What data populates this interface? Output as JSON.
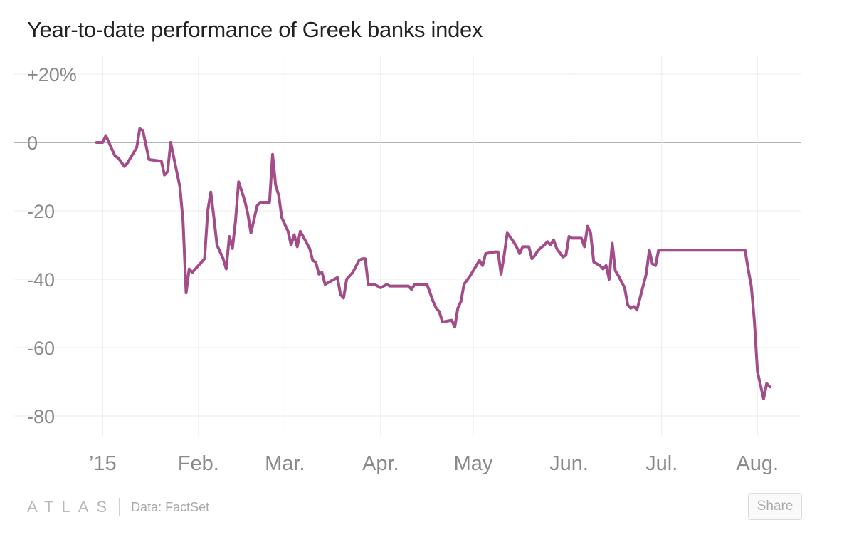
{
  "title": "Year-to-date performance of Greek banks index",
  "footer": {
    "logo": "ATLAS",
    "source": "Data: FactSet",
    "share_label": "Share"
  },
  "colors": {
    "line": "#a24d8a",
    "grid": "#ebebeb",
    "zero_line": "#9a9a9a",
    "tick_text": "#8a8a8a"
  },
  "chart_data": {
    "type": "line",
    "title": "Year-to-date performance of Greek banks index",
    "xlabel": "",
    "ylabel": "",
    "y_ticks": [
      {
        "value": 20,
        "label": "+20%"
      },
      {
        "value": 0,
        "label": "0"
      },
      {
        "value": -20,
        "label": "-20"
      },
      {
        "value": -40,
        "label": "-40"
      },
      {
        "value": -60,
        "label": "-60"
      },
      {
        "value": -80,
        "label": "-80"
      }
    ],
    "x_ticks": [
      {
        "date": "2015-01-01",
        "label": "’15"
      },
      {
        "date": "2015-02-01",
        "label": "Feb."
      },
      {
        "date": "2015-03-01",
        "label": "Mar."
      },
      {
        "date": "2015-04-01",
        "label": "Apr."
      },
      {
        "date": "2015-05-01",
        "label": "May"
      },
      {
        "date": "2015-06-01",
        "label": "Jun."
      },
      {
        "date": "2015-07-01",
        "label": "Jul."
      },
      {
        "date": "2015-08-01",
        "label": "Aug."
      }
    ],
    "xlim": [
      "2014-12-31",
      "2015-08-15"
    ],
    "ylim": [
      -85,
      22
    ],
    "grid": true,
    "series": [
      {
        "color": "#a24d8a",
        "points": [
          [
            "2014-12-30",
            0
          ],
          [
            "2015-01-01",
            0
          ],
          [
            "2015-01-02",
            2
          ],
          [
            "2015-01-05",
            -4
          ],
          [
            "2015-01-06",
            -4.5
          ],
          [
            "2015-01-08",
            -7
          ],
          [
            "2015-01-09",
            -6
          ],
          [
            "2015-01-12",
            -1.5
          ],
          [
            "2015-01-13",
            4
          ],
          [
            "2015-01-14",
            3.5
          ],
          [
            "2015-01-16",
            -5
          ],
          [
            "2015-01-20",
            -5.5
          ],
          [
            "2015-01-21",
            -9.5
          ],
          [
            "2015-01-22",
            -8.5
          ],
          [
            "2015-01-23",
            0
          ],
          [
            "2015-01-26",
            -13
          ],
          [
            "2015-01-27",
            -23
          ],
          [
            "2015-01-28",
            -44
          ],
          [
            "2015-01-29",
            -37
          ],
          [
            "2015-01-30",
            -38
          ],
          [
            "2015-02-02",
            -35
          ],
          [
            "2015-02-03",
            -34
          ],
          [
            "2015-02-04",
            -20
          ],
          [
            "2015-02-05",
            -14.5
          ],
          [
            "2015-02-06",
            -22
          ],
          [
            "2015-02-07",
            -30
          ],
          [
            "2015-02-09",
            -34
          ],
          [
            "2015-02-10",
            -37
          ],
          [
            "2015-02-11",
            -27.5
          ],
          [
            "2015-02-12",
            -31
          ],
          [
            "2015-02-13",
            -23
          ],
          [
            "2015-02-14",
            -11.5
          ],
          [
            "2015-02-16",
            -17
          ],
          [
            "2015-02-17",
            -21
          ],
          [
            "2015-02-18",
            -26.5
          ],
          [
            "2015-02-20",
            -18.5
          ],
          [
            "2015-02-21",
            -17.5
          ],
          [
            "2015-02-23",
            -17.5
          ],
          [
            "2015-02-24",
            -17.5
          ],
          [
            "2015-02-25",
            -3.5
          ],
          [
            "2015-02-26",
            -12.5
          ],
          [
            "2015-02-27",
            -15.5
          ],
          [
            "2015-02-28",
            -22
          ],
          [
            "2015-03-02",
            -26
          ],
          [
            "2015-03-03",
            -30
          ],
          [
            "2015-03-04",
            -27
          ],
          [
            "2015-03-05",
            -30.5
          ],
          [
            "2015-03-06",
            -26
          ],
          [
            "2015-03-09",
            -31
          ],
          [
            "2015-03-10",
            -34.5
          ],
          [
            "2015-03-11",
            -35
          ],
          [
            "2015-03-12",
            -38.5
          ],
          [
            "2015-03-13",
            -38
          ],
          [
            "2015-03-14",
            -41.5
          ],
          [
            "2015-03-16",
            -40.5
          ],
          [
            "2015-03-18",
            -39.5
          ],
          [
            "2015-03-19",
            -44.5
          ],
          [
            "2015-03-20",
            -45.5
          ],
          [
            "2015-03-21",
            -40
          ],
          [
            "2015-03-23",
            -38
          ],
          [
            "2015-03-25",
            -34.5
          ],
          [
            "2015-03-26",
            -34
          ],
          [
            "2015-03-27",
            -34
          ],
          [
            "2015-03-28",
            -41.5
          ],
          [
            "2015-03-30",
            -41.5
          ],
          [
            "2015-03-31",
            -42
          ],
          [
            "2015-04-01",
            -42.5
          ],
          [
            "2015-04-03",
            -41.5
          ],
          [
            "2015-04-04",
            -42
          ],
          [
            "2015-04-10",
            -42
          ],
          [
            "2015-04-11",
            -43
          ],
          [
            "2015-04-12",
            -41.5
          ],
          [
            "2015-04-16",
            -41.5
          ],
          [
            "2015-04-17",
            -44
          ],
          [
            "2015-04-18",
            -46.5
          ],
          [
            "2015-04-19",
            -48.5
          ],
          [
            "2015-04-20",
            -49.5
          ],
          [
            "2015-04-21",
            -52.5
          ],
          [
            "2015-04-24",
            -52
          ],
          [
            "2015-04-25",
            -54
          ],
          [
            "2015-04-26",
            -48.5
          ],
          [
            "2015-04-27",
            -46.5
          ],
          [
            "2015-04-28",
            -41.5
          ],
          [
            "2015-04-30",
            -39
          ],
          [
            "2015-05-01",
            -37.5
          ],
          [
            "2015-05-03",
            -34.5
          ],
          [
            "2015-05-04",
            -36
          ],
          [
            "2015-05-05",
            -32.5
          ],
          [
            "2015-05-08",
            -32
          ],
          [
            "2015-05-09",
            -32
          ],
          [
            "2015-05-10",
            -38.5
          ],
          [
            "2015-05-11",
            -33
          ],
          [
            "2015-05-12",
            -26.5
          ],
          [
            "2015-05-14",
            -29
          ],
          [
            "2015-05-15",
            -30.5
          ],
          [
            "2015-05-16",
            -32.5
          ],
          [
            "2015-05-17",
            -30.5
          ],
          [
            "2015-05-19",
            -30.5
          ],
          [
            "2015-05-20",
            -34
          ],
          [
            "2015-05-21",
            -33
          ],
          [
            "2015-05-22",
            -31.5
          ],
          [
            "2015-05-24",
            -30
          ],
          [
            "2015-05-25",
            -29
          ],
          [
            "2015-05-26",
            -30
          ],
          [
            "2015-05-27",
            -28.5
          ],
          [
            "2015-05-28",
            -31
          ],
          [
            "2015-05-30",
            -33.5
          ],
          [
            "2015-05-31",
            -33
          ],
          [
            "2015-06-01",
            -27.5
          ],
          [
            "2015-06-02",
            -28
          ],
          [
            "2015-06-05",
            -28
          ],
          [
            "2015-06-06",
            -30.5
          ],
          [
            "2015-06-07",
            -24.5
          ],
          [
            "2015-06-08",
            -26.5
          ],
          [
            "2015-06-09",
            -35
          ],
          [
            "2015-06-11",
            -36
          ],
          [
            "2015-06-12",
            -37
          ],
          [
            "2015-06-13",
            -36
          ],
          [
            "2015-06-14",
            -40
          ],
          [
            "2015-06-15",
            -29.5
          ],
          [
            "2015-06-16",
            -37.5
          ],
          [
            "2015-06-17",
            -39
          ],
          [
            "2015-06-19",
            -42.5
          ],
          [
            "2015-06-20",
            -47.5
          ],
          [
            "2015-06-21",
            -48.5
          ],
          [
            "2015-06-22",
            -48
          ],
          [
            "2015-06-23",
            -49
          ],
          [
            "2015-06-26",
            -38.5
          ],
          [
            "2015-06-27",
            -31.5
          ],
          [
            "2015-06-28",
            -35.5
          ],
          [
            "2015-06-29",
            -36
          ],
          [
            "2015-06-30",
            -31.5
          ],
          [
            "2015-07-28",
            -31.5
          ],
          [
            "2015-07-29",
            -37
          ],
          [
            "2015-07-30",
            -42
          ],
          [
            "2015-07-31",
            -52
          ],
          [
            "2015-08-01",
            -67
          ],
          [
            "2015-08-03",
            -75
          ],
          [
            "2015-08-04",
            -70.5
          ],
          [
            "2015-08-05",
            -71.5
          ]
        ]
      }
    ]
  }
}
